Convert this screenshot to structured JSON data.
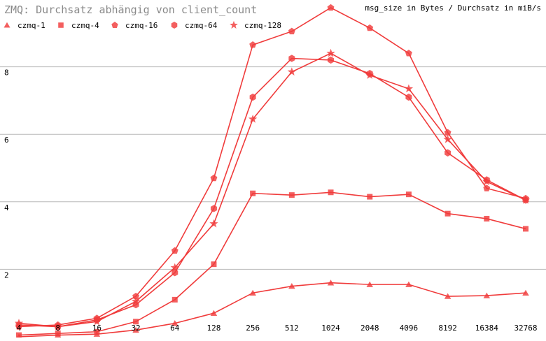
{
  "chart_data": {
    "type": "line",
    "title": "ZMQ: Durchsatz abhängig von client_count",
    "subtitle": "msg_size in Bytes / Durchsatz in miB/s",
    "categories": [
      "4",
      "8",
      "16",
      "32",
      "64",
      "128",
      "256",
      "512",
      "1024",
      "2048",
      "4096",
      "8192",
      "16384",
      "32768"
    ],
    "y_ticks": [
      "2",
      "4",
      "6",
      "8"
    ],
    "ylim": [
      0,
      9.5
    ],
    "grid": true,
    "legend_position": "top-left",
    "series_color": "#f03c3c",
    "series": [
      {
        "name": "czmq-1",
        "marker": "triangle",
        "values": [
          0.0,
          0.05,
          0.08,
          0.2,
          0.4,
          0.7,
          1.3,
          1.5,
          1.6,
          1.55,
          1.55,
          1.2,
          1.22,
          1.3
        ]
      },
      {
        "name": "czmq-4",
        "marker": "square",
        "values": [
          0.05,
          0.1,
          0.15,
          0.45,
          1.1,
          2.15,
          4.25,
          4.2,
          4.28,
          4.15,
          4.22,
          3.65,
          3.5,
          3.2
        ]
      },
      {
        "name": "czmq-16",
        "marker": "pentagon",
        "values": [
          0.3,
          0.35,
          0.55,
          1.2,
          2.55,
          4.7,
          8.65,
          9.05,
          9.75,
          9.15,
          8.4,
          6.05,
          4.4,
          4.1
        ]
      },
      {
        "name": "czmq-64",
        "marker": "hexagon",
        "values": [
          0.35,
          0.3,
          0.5,
          0.95,
          1.9,
          3.8,
          7.1,
          8.25,
          8.2,
          7.8,
          7.1,
          5.45,
          4.65,
          4.05
        ]
      },
      {
        "name": "czmq-128",
        "marker": "star",
        "values": [
          0.4,
          0.3,
          0.45,
          1.05,
          2.05,
          3.35,
          6.45,
          7.85,
          8.4,
          7.75,
          7.35,
          5.85,
          4.6,
          4.05
        ]
      }
    ]
  }
}
